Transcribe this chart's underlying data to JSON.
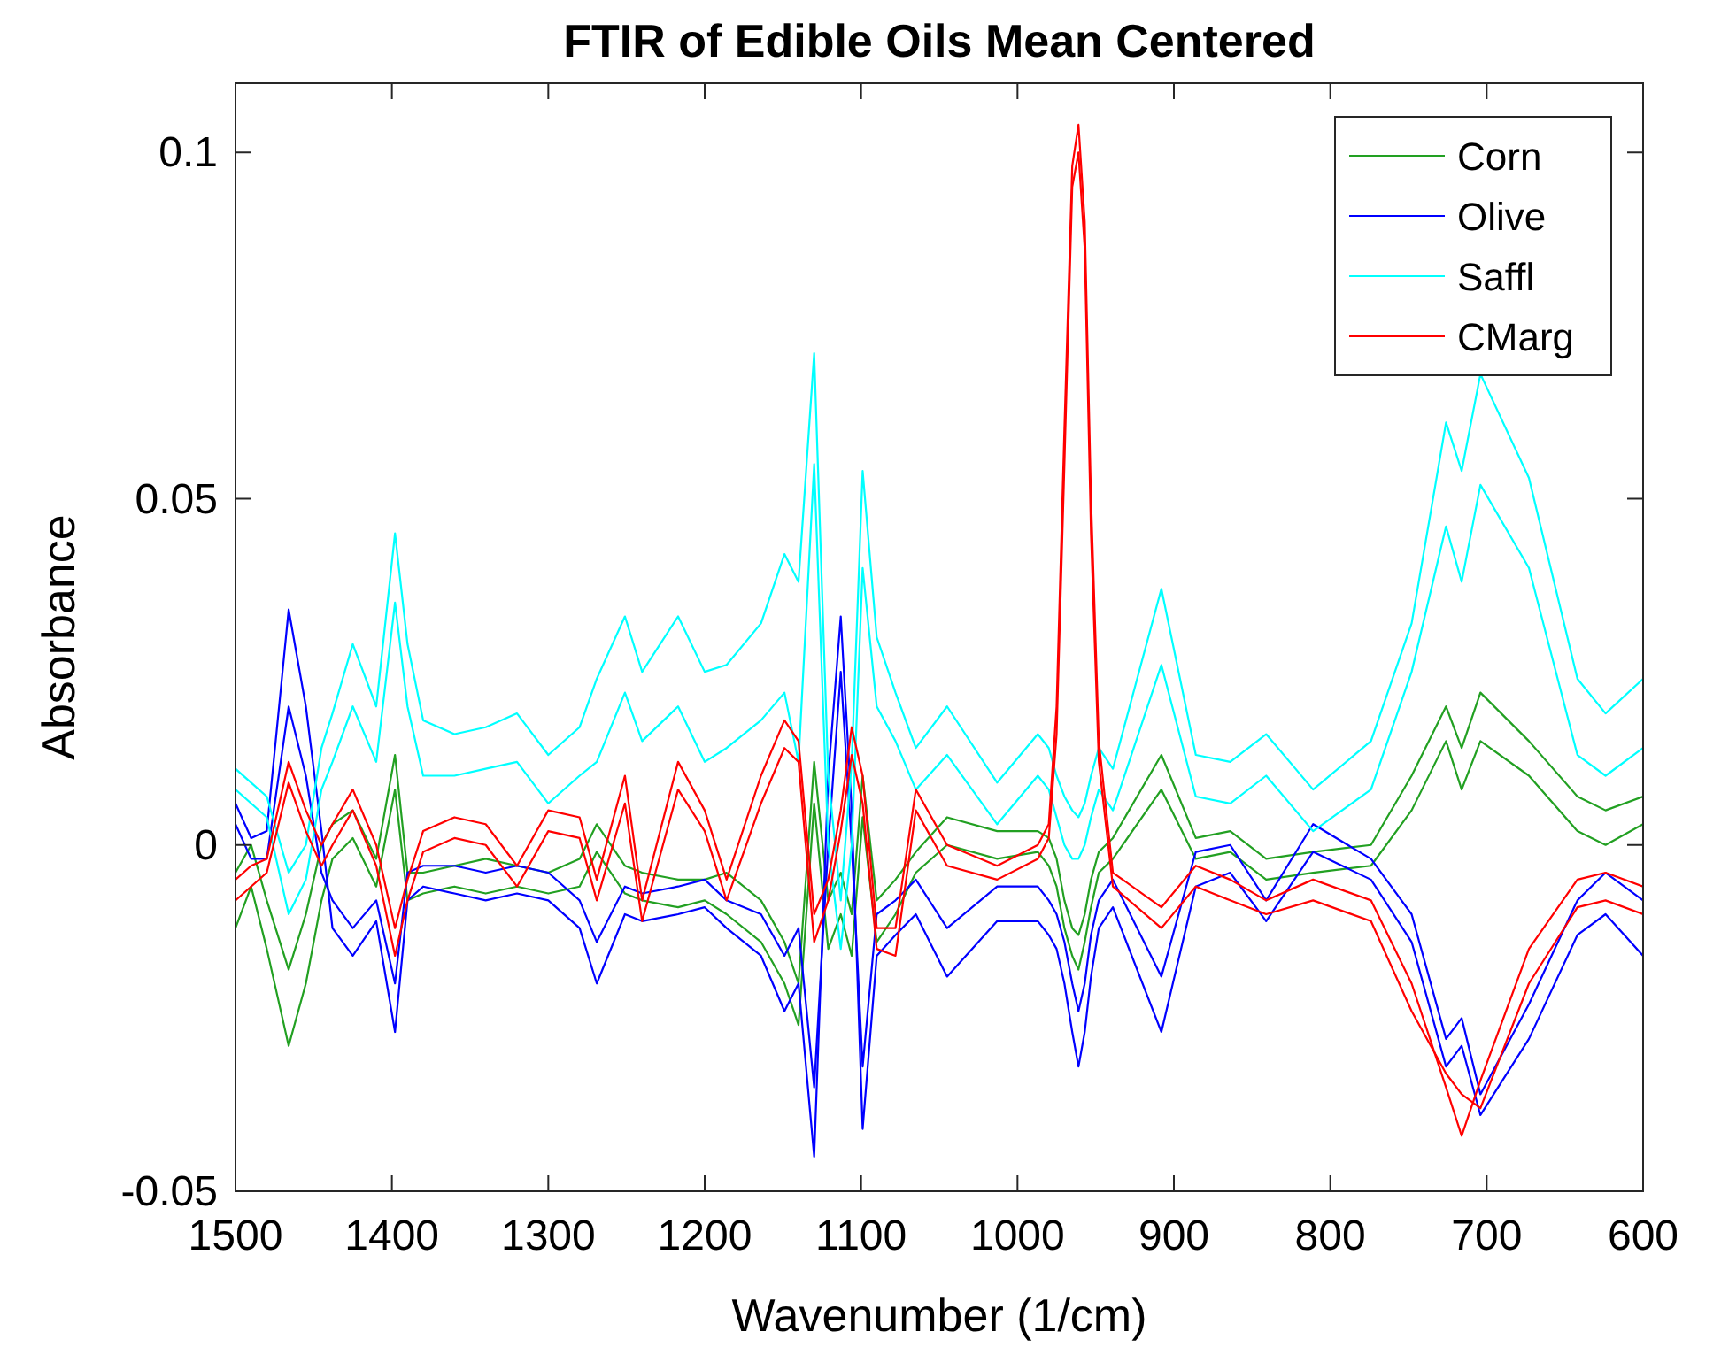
{
  "chart_data": {
    "type": "line",
    "title": "FTIR of Edible Oils Mean Centered",
    "xlabel": "Wavenumber (1/cm)",
    "ylabel": "Absorbance",
    "xlim": [
      1500,
      600
    ],
    "ylim": [
      -0.05,
      0.11
    ],
    "xticks": [
      1500,
      1400,
      1300,
      1200,
      1100,
      1000,
      900,
      800,
      700,
      600
    ],
    "yticks": [
      -0.05,
      0,
      0.05,
      0.1
    ],
    "legend": "top right",
    "x": [
      1500,
      1490,
      1480,
      1466,
      1455,
      1445,
      1438,
      1425,
      1410,
      1398,
      1390,
      1380,
      1360,
      1340,
      1320,
      1300,
      1280,
      1269,
      1251,
      1240,
      1217,
      1200,
      1186,
      1164,
      1149,
      1140,
      1130,
      1121,
      1113,
      1106,
      1099,
      1090,
      1078,
      1065,
      1045,
      1013,
      987,
      980,
      975,
      970,
      965,
      961,
      957,
      953,
      948,
      939,
      908,
      886,
      864,
      841,
      811,
      774,
      748,
      726,
      716,
      704,
      673,
      642,
      624,
      600
    ],
    "series": [
      {
        "name": "Corn",
        "color": "#22a022",
        "values": [
          -0.004,
          0.0,
          -0.008,
          -0.018,
          -0.01,
          0.0,
          0.003,
          0.005,
          -0.002,
          0.013,
          -0.004,
          -0.004,
          -0.003,
          -0.002,
          -0.003,
          -0.004,
          -0.002,
          0.003,
          -0.003,
          -0.004,
          -0.005,
          -0.005,
          -0.004,
          -0.008,
          -0.014,
          -0.02,
          0.012,
          -0.008,
          -0.004,
          -0.01,
          0.01,
          -0.008,
          -0.005,
          -0.001,
          0.004,
          0.002,
          0.002,
          0.001,
          -0.002,
          -0.008,
          -0.012,
          -0.013,
          -0.01,
          -0.005,
          -0.001,
          0.001,
          0.013,
          0.001,
          0.002,
          -0.002,
          -0.001,
          0.0,
          0.01,
          0.02,
          0.014,
          0.022,
          0.015,
          0.007,
          0.005,
          0.007
        ]
      },
      {
        "color": "#22a022",
        "values": [
          -0.012,
          -0.006,
          -0.015,
          -0.029,
          -0.02,
          -0.008,
          -0.002,
          0.001,
          -0.006,
          0.008,
          -0.008,
          -0.007,
          -0.006,
          -0.007,
          -0.006,
          -0.007,
          -0.006,
          -0.001,
          -0.007,
          -0.008,
          -0.009,
          -0.008,
          -0.01,
          -0.014,
          -0.02,
          -0.026,
          0.006,
          -0.015,
          -0.01,
          -0.016,
          0.004,
          -0.014,
          -0.01,
          -0.004,
          0.0,
          -0.002,
          -0.001,
          -0.003,
          -0.006,
          -0.012,
          -0.016,
          -0.018,
          -0.014,
          -0.009,
          -0.004,
          -0.002,
          0.008,
          -0.002,
          -0.001,
          -0.005,
          -0.004,
          -0.003,
          0.005,
          0.015,
          0.008,
          0.015,
          0.01,
          0.002,
          0.0,
          0.003
        ]
      },
      {
        "name": "Olive",
        "color": "#0000ff",
        "values": [
          0.003,
          -0.002,
          -0.002,
          0.02,
          0.01,
          -0.004,
          -0.008,
          -0.012,
          -0.008,
          -0.02,
          -0.004,
          -0.003,
          -0.003,
          -0.004,
          -0.003,
          -0.004,
          -0.008,
          -0.014,
          -0.006,
          -0.007,
          -0.006,
          -0.005,
          -0.008,
          -0.01,
          -0.016,
          -0.012,
          -0.035,
          0.0,
          0.025,
          0.0,
          -0.032,
          -0.01,
          -0.008,
          -0.005,
          -0.012,
          -0.006,
          -0.006,
          -0.008,
          -0.01,
          -0.014,
          -0.02,
          -0.024,
          -0.02,
          -0.013,
          -0.008,
          -0.005,
          -0.019,
          -0.001,
          0.0,
          -0.008,
          0.003,
          -0.002,
          -0.01,
          -0.028,
          -0.025,
          -0.036,
          -0.023,
          -0.008,
          -0.004,
          -0.008
        ]
      },
      {
        "color": "#0000ff",
        "values": [
          0.006,
          0.001,
          0.002,
          0.034,
          0.02,
          0.002,
          -0.012,
          -0.016,
          -0.011,
          -0.027,
          -0.008,
          -0.006,
          -0.007,
          -0.008,
          -0.007,
          -0.008,
          -0.012,
          -0.02,
          -0.01,
          -0.011,
          -0.01,
          -0.009,
          -0.012,
          -0.016,
          -0.024,
          -0.02,
          -0.045,
          0.01,
          0.033,
          0.005,
          -0.041,
          -0.016,
          -0.013,
          -0.01,
          -0.019,
          -0.011,
          -0.011,
          -0.013,
          -0.015,
          -0.02,
          -0.027,
          -0.032,
          -0.027,
          -0.019,
          -0.012,
          -0.009,
          -0.027,
          -0.006,
          -0.004,
          -0.011,
          -0.001,
          -0.005,
          -0.014,
          -0.032,
          -0.029,
          -0.039,
          -0.028,
          -0.013,
          -0.01,
          -0.016
        ]
      },
      {
        "name": "Saffl",
        "color": "#00ffff",
        "values": [
          0.008,
          0.006,
          0.004,
          -0.01,
          -0.005,
          0.008,
          0.012,
          0.02,
          0.012,
          0.035,
          0.02,
          0.01,
          0.01,
          0.011,
          0.012,
          0.006,
          0.01,
          0.012,
          0.022,
          0.015,
          0.02,
          0.012,
          0.014,
          0.018,
          0.022,
          0.012,
          0.055,
          0.0,
          -0.015,
          0.0,
          0.04,
          0.02,
          0.015,
          0.008,
          0.013,
          0.003,
          0.01,
          0.008,
          0.004,
          0.0,
          -0.002,
          -0.002,
          0.0,
          0.004,
          0.008,
          0.005,
          0.026,
          0.007,
          0.006,
          0.01,
          0.002,
          0.008,
          0.025,
          0.046,
          0.038,
          0.052,
          0.04,
          0.013,
          0.01,
          0.014
        ]
      },
      {
        "color": "#00ffff",
        "values": [
          0.011,
          0.009,
          0.007,
          -0.004,
          0.0,
          0.014,
          0.019,
          0.029,
          0.02,
          0.045,
          0.029,
          0.018,
          0.016,
          0.017,
          0.019,
          0.013,
          0.017,
          0.024,
          0.033,
          0.025,
          0.033,
          0.025,
          0.026,
          0.032,
          0.042,
          0.038,
          0.071,
          0.01,
          -0.008,
          0.012,
          0.054,
          0.03,
          0.022,
          0.014,
          0.02,
          0.009,
          0.016,
          0.014,
          0.01,
          0.007,
          0.005,
          0.004,
          0.006,
          0.01,
          0.014,
          0.011,
          0.037,
          0.013,
          0.012,
          0.016,
          0.008,
          0.015,
          0.032,
          0.061,
          0.054,
          0.068,
          0.053,
          0.024,
          0.019,
          0.024
        ]
      },
      {
        "name": "CMarg",
        "color": "#ff0000",
        "values": [
          -0.005,
          -0.003,
          -0.002,
          0.012,
          0.005,
          0.0,
          0.003,
          0.008,
          0.0,
          -0.012,
          -0.005,
          0.002,
          0.004,
          0.003,
          -0.003,
          0.005,
          0.004,
          -0.005,
          0.01,
          -0.008,
          0.012,
          0.005,
          -0.005,
          0.01,
          0.018,
          0.015,
          -0.01,
          -0.005,
          0.005,
          0.017,
          0.01,
          -0.012,
          -0.012,
          0.008,
          0.0,
          -0.003,
          0.0,
          0.003,
          0.02,
          0.06,
          0.098,
          0.104,
          0.09,
          0.05,
          0.015,
          -0.004,
          -0.009,
          -0.003,
          -0.005,
          -0.008,
          -0.005,
          -0.008,
          -0.02,
          -0.035,
          -0.042,
          -0.034,
          -0.015,
          -0.005,
          -0.004,
          -0.006
        ]
      },
      {
        "color": "#ff0000",
        "values": [
          -0.008,
          -0.006,
          -0.004,
          0.009,
          0.002,
          -0.003,
          0.0,
          0.005,
          -0.003,
          -0.016,
          -0.008,
          -0.001,
          0.001,
          0.0,
          -0.006,
          0.002,
          0.001,
          -0.008,
          0.006,
          -0.011,
          0.008,
          0.002,
          -0.008,
          0.006,
          0.014,
          0.012,
          -0.014,
          -0.008,
          0.002,
          0.013,
          0.006,
          -0.015,
          -0.016,
          0.005,
          -0.003,
          -0.005,
          -0.002,
          0.001,
          0.016,
          0.055,
          0.095,
          0.1,
          0.086,
          0.045,
          0.012,
          -0.006,
          -0.012,
          -0.006,
          -0.008,
          -0.01,
          -0.008,
          -0.011,
          -0.024,
          -0.033,
          -0.036,
          -0.038,
          -0.02,
          -0.009,
          -0.008,
          -0.01
        ]
      }
    ]
  }
}
